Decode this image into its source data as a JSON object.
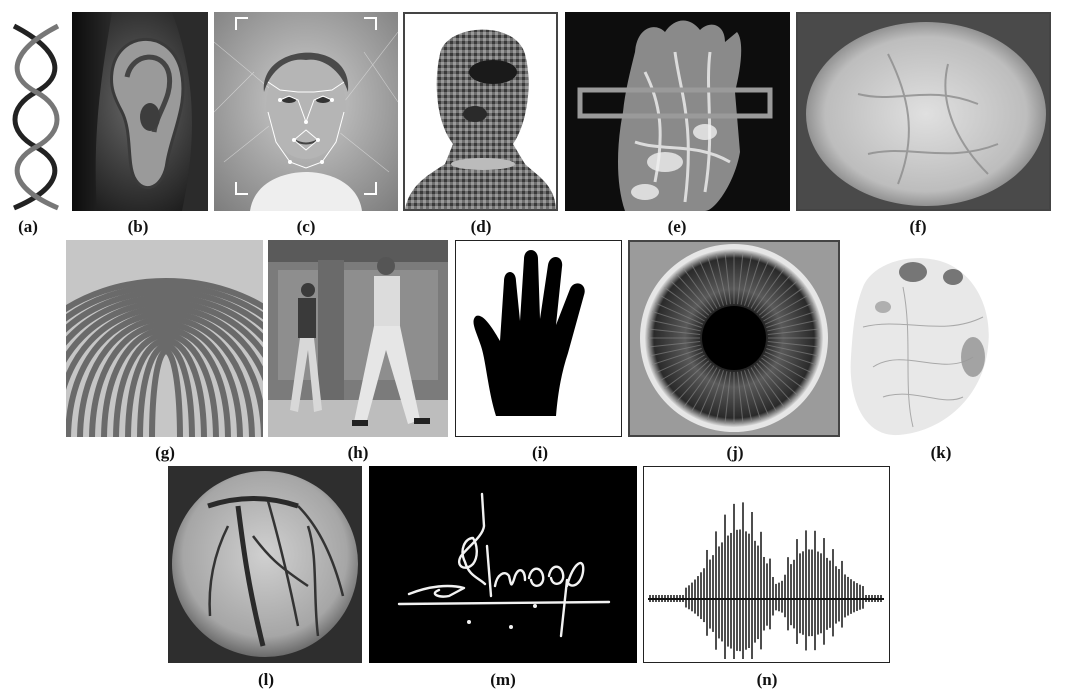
{
  "figure": {
    "panels": [
      {
        "id": "a",
        "label": "(a)",
        "depicts": "dna-double-helix"
      },
      {
        "id": "b",
        "label": "(b)",
        "depicts": "ear"
      },
      {
        "id": "c",
        "label": "(c)",
        "depicts": "face-landmarks"
      },
      {
        "id": "d",
        "label": "(d)",
        "depicts": "face-thermogram"
      },
      {
        "id": "e",
        "label": "(e)",
        "depicts": "hand-vein"
      },
      {
        "id": "f",
        "label": "(f)",
        "depicts": "palm-vein-infrared"
      },
      {
        "id": "g",
        "label": "(g)",
        "depicts": "fingerprint"
      },
      {
        "id": "h",
        "label": "(h)",
        "depicts": "gait"
      },
      {
        "id": "i",
        "label": "(i)",
        "depicts": "hand-geometry"
      },
      {
        "id": "j",
        "label": "(j)",
        "depicts": "iris"
      },
      {
        "id": "k",
        "label": "(k)",
        "depicts": "palmprint"
      },
      {
        "id": "l",
        "label": "(l)",
        "depicts": "retina-angiogram"
      },
      {
        "id": "m",
        "label": "(m)",
        "depicts": "signature"
      },
      {
        "id": "n",
        "label": "(n)",
        "depicts": "voice-waveform"
      }
    ]
  }
}
